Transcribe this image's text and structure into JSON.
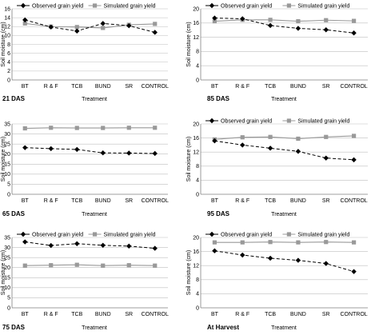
{
  "figure": {
    "categories": [
      "BT",
      "R & F",
      "TCB",
      "BUND",
      "SR",
      "CONTROL"
    ],
    "legend": {
      "observed": "Observed grain yield",
      "simulated": "Simulated grain yield"
    },
    "xlabel": "Treatment",
    "ylabel": "Soil moisture (cm)",
    "colors": {
      "observed": "#000000",
      "simulated": "#999999",
      "grid": "#bfbfbf",
      "axis": "#7f7f7f"
    }
  },
  "chart_data": [
    {
      "type": "line",
      "panel_label": "21 DAS",
      "categories": [
        "BT",
        "R & F",
        "TCB",
        "BUND",
        "SR",
        "CONTROL"
      ],
      "xlabel": "Treatment",
      "ylabel": "Soil moisture (cm)",
      "ylim": [
        0,
        16
      ],
      "yticks": [
        0,
        2,
        4,
        6,
        8,
        10,
        12,
        14,
        16
      ],
      "grid": "horizontal",
      "legend": "top",
      "series": [
        {
          "name": "Observed grain yield",
          "style": "dashed-diamond",
          "values": [
            13.5,
            11.9,
            11.0,
            12.7,
            12.2,
            10.7
          ]
        },
        {
          "name": "Simulated grain yield",
          "style": "solid-square",
          "values": [
            12.7,
            12.0,
            11.9,
            11.7,
            12.4,
            12.6
          ]
        }
      ]
    },
    {
      "type": "line",
      "panel_label": "85 DAS",
      "categories": [
        "BT",
        "R & F",
        "TCB",
        "BUND",
        "SR",
        "CONTROL"
      ],
      "xlabel": "Treatment",
      "ylabel": "Soil moisture (cm)",
      "ylim": [
        0,
        20
      ],
      "yticks": [
        0,
        4,
        8,
        12,
        16,
        20
      ],
      "grid": "horizontal",
      "legend": "top",
      "series": [
        {
          "name": "Observed grain yield",
          "style": "dashed-diamond",
          "values": [
            17.4,
            17.2,
            15.3,
            14.5,
            14.1,
            13.2
          ]
        },
        {
          "name": "Simulated grain yield",
          "style": "solid-square",
          "values": [
            16.5,
            16.9,
            16.9,
            16.5,
            16.8,
            16.6
          ]
        }
      ]
    },
    {
      "type": "line",
      "panel_label": "65 DAS",
      "categories": [
        "BT",
        "R & F",
        "TCB",
        "BUND",
        "SR",
        "CONTROL"
      ],
      "xlabel": "Treatment",
      "ylabel": "Soil moisture (cm)",
      "ylim": [
        0,
        35
      ],
      "yticks": [
        0,
        5,
        10,
        15,
        20,
        25,
        30,
        35
      ],
      "grid": "horizontal",
      "legend": "none",
      "series": [
        {
          "name": "Observed grain yield",
          "style": "dashed-diamond",
          "values": [
            23.2,
            22.7,
            22.3,
            20.6,
            20.5,
            20.3
          ]
        },
        {
          "name": "Simulated grain yield",
          "style": "solid-square",
          "values": [
            32.8,
            33.1,
            33.0,
            33.0,
            33.1,
            33.1
          ]
        }
      ]
    },
    {
      "type": "line",
      "panel_label": "95 DAS",
      "categories": [
        "BT",
        "R & F",
        "TCB",
        "BUND",
        "SR",
        "CONTROL"
      ],
      "xlabel": "Treatment",
      "ylabel": "Soil moisture (cm)",
      "ylim": [
        0,
        20
      ],
      "yticks": [
        0,
        4,
        8,
        12,
        16,
        20
      ],
      "grid": "horizontal",
      "legend": "top",
      "series": [
        {
          "name": "Observed grain yield",
          "style": "dashed-diamond",
          "values": [
            15.2,
            14.0,
            13.1,
            12.2,
            10.3,
            9.8
          ]
        },
        {
          "name": "Simulated grain yield",
          "style": "solid-square",
          "values": [
            15.6,
            16.2,
            16.3,
            15.8,
            16.3,
            16.6
          ]
        }
      ]
    },
    {
      "type": "line",
      "panel_label": "75 DAS",
      "categories": [
        "BT",
        "R & F",
        "TCB",
        "BUND",
        "SR",
        "CONTROL"
      ],
      "xlabel": "Treatment",
      "ylabel": "Soil moisture (cm)",
      "ylim": [
        0,
        35
      ],
      "yticks": [
        0,
        5,
        10,
        15,
        20,
        25,
        30,
        35
      ],
      "grid": "horizontal",
      "legend": "top",
      "series": [
        {
          "name": "Observed grain yield",
          "style": "dashed-diamond",
          "values": [
            32.8,
            31.0,
            31.9,
            31.1,
            30.7,
            29.6
          ]
        },
        {
          "name": "Simulated grain yield",
          "style": "solid-square",
          "values": [
            21.0,
            21.2,
            21.4,
            21.0,
            21.2,
            21.0
          ]
        }
      ]
    },
    {
      "type": "line",
      "panel_label": "At Harvest",
      "categories": [
        "BT",
        "R & F",
        "TCB",
        "BUND",
        "SR",
        "CONTROL"
      ],
      "xlabel": "Treatment",
      "ylabel": "Soil moisture (cm)",
      "ylim": [
        0,
        20
      ],
      "yticks": [
        0,
        4,
        8,
        12,
        16,
        20
      ],
      "grid": "horizontal",
      "legend": "top",
      "series": [
        {
          "name": "Observed grain yield",
          "style": "dashed-diamond",
          "values": [
            16.2,
            15.0,
            14.1,
            13.5,
            12.6,
            10.3
          ]
        },
        {
          "name": "Simulated grain yield",
          "style": "solid-square",
          "values": [
            18.6,
            18.6,
            18.7,
            18.6,
            18.7,
            18.6
          ]
        }
      ]
    }
  ]
}
